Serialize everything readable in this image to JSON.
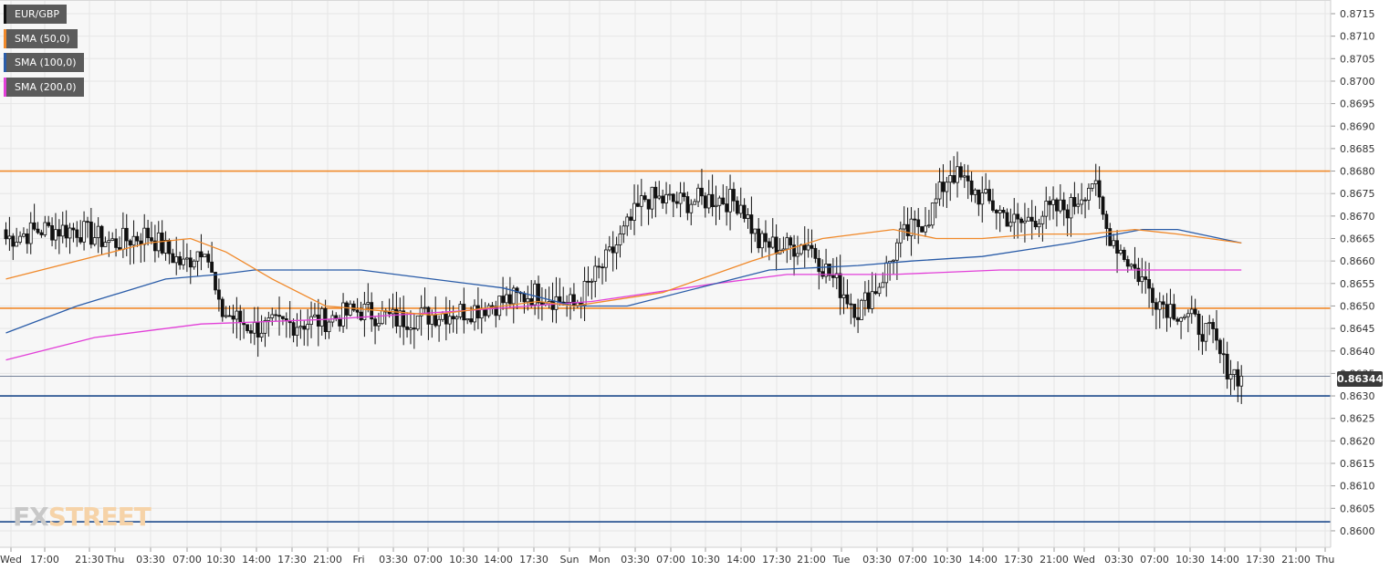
{
  "legend": [
    {
      "label": "EUR/GBP",
      "color": "#111111"
    },
    {
      "label": "SMA (50,0)",
      "color": "#f0892a"
    },
    {
      "label": "SMA (100,0)",
      "color": "#2a5ca8"
    },
    {
      "label": "SMA (200,0)",
      "color": "#e23fd8"
    }
  ],
  "logo": {
    "fx": "FX",
    "street": "STREET"
  },
  "current_price_label": "0.86344",
  "chart_data": {
    "type": "candlestick",
    "symbol": "EUR/GBP",
    "ylim": [
      0.8597,
      0.8718
    ],
    "y_ticks": [
      "0.8715",
      "0.8710",
      "0.8705",
      "0.8700",
      "0.8695",
      "0.8690",
      "0.8685",
      "0.8680",
      "0.8675",
      "0.8670",
      "0.8665",
      "0.8660",
      "0.8655",
      "0.8650",
      "0.8645",
      "0.8640",
      "0.8635",
      "0.8630",
      "0.8625",
      "0.8620",
      "0.8615",
      "0.8610",
      "0.8605",
      "0.8600"
    ],
    "x_ticks": [
      "Wed",
      "17:00",
      "21:30",
      "Thu",
      "03:30",
      "07:00",
      "10:30",
      "14:00",
      "17:30",
      "21:00",
      "Fri",
      "03:30",
      "07:00",
      "10:30",
      "14:00",
      "17:30",
      "Sun",
      "Mon",
      "03:30",
      "07:00",
      "10:30",
      "14:00",
      "17:30",
      "21:00",
      "Tue",
      "03:30",
      "07:00",
      "10:30",
      "14:00",
      "17:30",
      "21:00",
      "Wed",
      "03:30",
      "07:00",
      "10:30",
      "14:00",
      "17:30",
      "21:00",
      "Thu"
    ],
    "current_price": 0.86344,
    "horizontal_levels": [
      {
        "value": 0.868,
        "color": "#f0892a"
      },
      {
        "value": 0.86495,
        "color": "#f0892a"
      },
      {
        "value": 0.863,
        "color": "#1e4b8c"
      },
      {
        "value": 0.8602,
        "color": "#1e4b8c"
      }
    ],
    "price_keypoints": [
      [
        0,
        0.8665
      ],
      [
        10,
        0.8667
      ],
      [
        20,
        0.8667
      ],
      [
        30,
        0.8664
      ],
      [
        40,
        0.8666
      ],
      [
        50,
        0.8659
      ],
      [
        56,
        0.8664
      ],
      [
        60,
        0.8649
      ],
      [
        70,
        0.8645
      ],
      [
        80,
        0.8646
      ],
      [
        90,
        0.8647
      ],
      [
        100,
        0.8649
      ],
      [
        110,
        0.8647
      ],
      [
        120,
        0.8648
      ],
      [
        130,
        0.8649
      ],
      [
        140,
        0.8651
      ],
      [
        150,
        0.8653
      ],
      [
        160,
        0.865
      ],
      [
        170,
        0.8661
      ],
      [
        180,
        0.8674
      ],
      [
        190,
        0.8673
      ],
      [
        200,
        0.8674
      ],
      [
        207,
        0.8673
      ],
      [
        212,
        0.8664
      ],
      [
        220,
        0.8663
      ],
      [
        226,
        0.8664
      ],
      [
        230,
        0.8659
      ],
      [
        240,
        0.8649
      ],
      [
        246,
        0.8655
      ],
      [
        252,
        0.8665
      ],
      [
        260,
        0.867
      ],
      [
        266,
        0.868
      ],
      [
        275,
        0.8674
      ],
      [
        285,
        0.8668
      ],
      [
        293,
        0.8671
      ],
      [
        300,
        0.8672
      ],
      [
        306,
        0.8678
      ],
      [
        310,
        0.8667
      ],
      [
        318,
        0.8658
      ],
      [
        325,
        0.8651
      ],
      [
        332,
        0.8648
      ],
      [
        340,
        0.8643
      ],
      [
        343,
        0.8637
      ],
      [
        348,
        0.8634
      ]
    ],
    "sma_50": [
      [
        0,
        0.8656
      ],
      [
        40,
        0.8664
      ],
      [
        52,
        0.8665
      ],
      [
        62,
        0.8662
      ],
      [
        75,
        0.8656
      ],
      [
        90,
        0.865
      ],
      [
        120,
        0.8648
      ],
      [
        150,
        0.8651
      ],
      [
        160,
        0.865
      ],
      [
        185,
        0.8653
      ],
      [
        210,
        0.866
      ],
      [
        230,
        0.8665
      ],
      [
        250,
        0.8667
      ],
      [
        262,
        0.8665
      ],
      [
        275,
        0.8665
      ],
      [
        290,
        0.8666
      ],
      [
        305,
        0.8666
      ],
      [
        318,
        0.8667
      ],
      [
        330,
        0.8666
      ],
      [
        348,
        0.8664
      ]
    ],
    "sma_100": [
      [
        0,
        0.8644
      ],
      [
        20,
        0.865
      ],
      [
        45,
        0.8656
      ],
      [
        60,
        0.8657
      ],
      [
        70,
        0.8658
      ],
      [
        100,
        0.8658
      ],
      [
        120,
        0.8656
      ],
      [
        140,
        0.8654
      ],
      [
        160,
        0.865
      ],
      [
        175,
        0.865
      ],
      [
        195,
        0.8654
      ],
      [
        215,
        0.8658
      ],
      [
        240,
        0.8659
      ],
      [
        255,
        0.866
      ],
      [
        275,
        0.8661
      ],
      [
        300,
        0.8664
      ],
      [
        320,
        0.8667
      ],
      [
        330,
        0.8667
      ],
      [
        348,
        0.8664
      ]
    ],
    "sma_200": [
      [
        0,
        0.8638
      ],
      [
        25,
        0.8643
      ],
      [
        55,
        0.8646
      ],
      [
        90,
        0.8647
      ],
      [
        130,
        0.8649
      ],
      [
        165,
        0.8651
      ],
      [
        200,
        0.8655
      ],
      [
        220,
        0.8657
      ],
      [
        250,
        0.8657
      ],
      [
        280,
        0.8658
      ],
      [
        310,
        0.8658
      ],
      [
        330,
        0.8658
      ],
      [
        348,
        0.8658
      ]
    ]
  }
}
